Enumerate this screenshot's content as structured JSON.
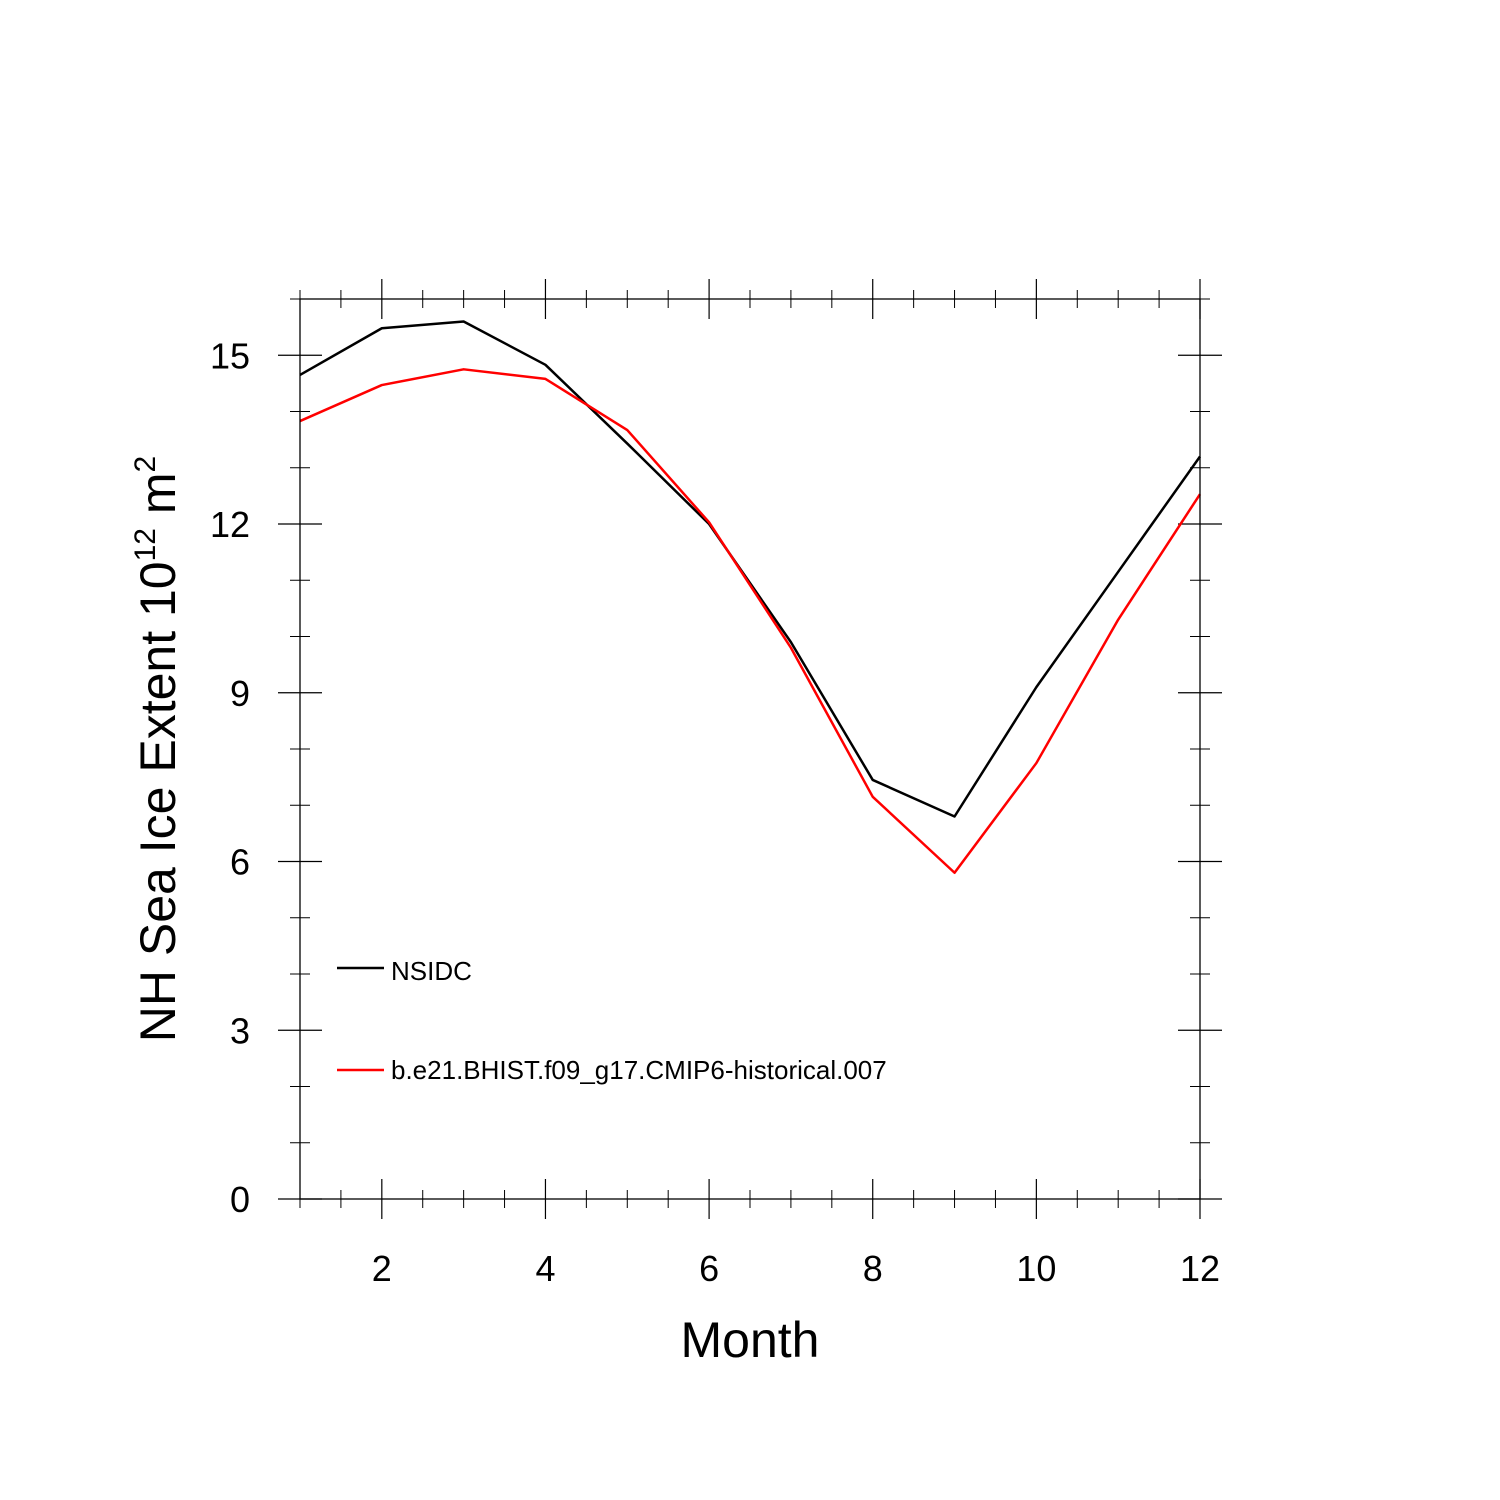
{
  "chart_data": {
    "type": "line",
    "xlabel": "Month",
    "ylabel": {
      "prefix": "NH Sea Ice Extent 10",
      "exponent1": "12",
      "middle": " m",
      "exponent2": "2"
    },
    "xlim": [
      1,
      12
    ],
    "ylim": [
      0,
      16
    ],
    "x_major_ticks": [
      2,
      4,
      6,
      8,
      10,
      12
    ],
    "y_major_ticks": [
      0,
      3,
      6,
      9,
      12,
      15
    ],
    "x": [
      1,
      2,
      3,
      4,
      5,
      6,
      7,
      8,
      9,
      10,
      11,
      12
    ],
    "series": [
      {
        "name": "NSIDC",
        "color": "#000000",
        "values": [
          14.65,
          15.48,
          15.6,
          14.83,
          13.43,
          12.0,
          9.9,
          7.45,
          6.8,
          9.1,
          11.15,
          13.2
        ]
      },
      {
        "name": "b.e21.BHIST.f09_g17.CMIP6-historical.007",
        "color": "#ff0000",
        "values": [
          13.83,
          14.47,
          14.75,
          14.58,
          13.67,
          12.03,
          9.8,
          7.15,
          5.8,
          7.75,
          10.3,
          12.53
        ]
      }
    ],
    "legend_position": "lower-left",
    "grid": false
  }
}
